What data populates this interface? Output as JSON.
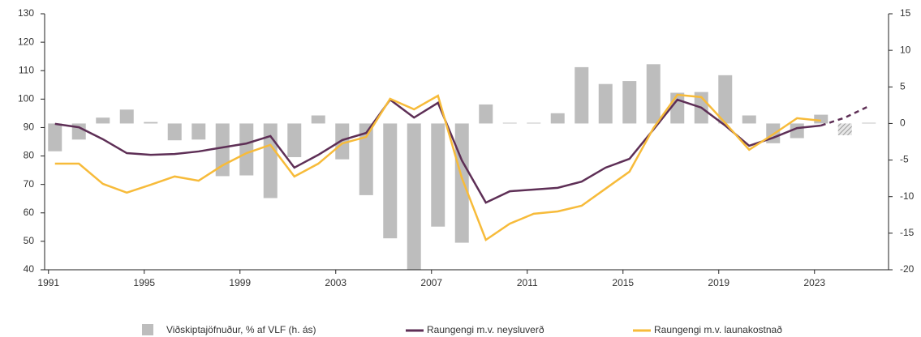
{
  "chart_data": {
    "type": "bar_line",
    "categories": [
      "1991",
      null,
      null,
      null,
      "1995",
      null,
      null,
      null,
      "1999",
      null,
      null,
      null,
      "2003",
      null,
      null,
      null,
      "2007",
      null,
      null,
      null,
      "2011",
      null,
      null,
      null,
      "2015",
      null,
      null,
      null,
      "2019",
      null,
      null,
      null,
      "2023",
      null,
      null
    ],
    "series": [
      {
        "name": "Viðskiptajöfnuður, % af VLF (h. ás)",
        "type": "bar",
        "axis": "y2",
        "color": "#bdbdbd",
        "values": [
          -3.8,
          -2.2,
          0.8,
          1.9,
          0.2,
          -2.3,
          -2.2,
          -7.2,
          -7.1,
          -10.2,
          -4.6,
          1.1,
          -4.9,
          -9.8,
          -15.7,
          -20,
          -14.1,
          -16.3,
          2.6,
          0.1,
          0.1,
          1.4,
          7.7,
          5.4,
          5.8,
          8.1,
          4.2,
          4.3,
          6.6,
          1.1,
          -2.7,
          -2.0,
          1.2,
          -1.6,
          0.1
        ]
      },
      {
        "name": "Raungengi m.v. neysluverð",
        "type": "line",
        "color": "#5e2f56",
        "values": [
          91.3,
          90.1,
          85.9,
          81.0,
          80.4,
          80.7,
          81.6,
          83.0,
          84.4,
          87.0,
          75.9,
          80.4,
          85.6,
          88.1,
          99.8,
          93.5,
          98.7,
          78.4,
          63.6,
          67.6,
          68.2,
          68.8,
          71.0,
          75.9,
          79.0,
          89.3,
          99.8,
          97.0,
          90.7,
          83.6,
          86.4,
          89.8,
          90.7,
          93.5,
          97.5
        ]
      },
      {
        "name": "Raungengi m.v. launakostnað",
        "type": "line",
        "color": "#f7bb3a",
        "values": [
          77.3,
          77.3,
          70.2,
          67.1,
          69.9,
          72.8,
          71.3,
          76.7,
          81.0,
          83.9,
          72.8,
          77.3,
          84.4,
          86.7,
          100.1,
          96.4,
          101.2,
          72.2,
          50.5,
          56.2,
          59.7,
          60.5,
          62.5,
          68.5,
          74.5,
          89.8,
          101.5,
          100.7,
          91.6,
          82.2,
          87.6,
          93.3,
          92.4,
          null,
          null
        ]
      }
    ],
    "forecast_points": 2,
    "ylim": [
      40,
      130
    ],
    "yticks": [
      40,
      50,
      60,
      70,
      80,
      90,
      100,
      110,
      120,
      130
    ],
    "y2lim": [
      -20,
      15
    ],
    "y2ticks": [
      -20,
      -15,
      -10,
      -5,
      0,
      5,
      10,
      15
    ],
    "legend": "bottom"
  }
}
